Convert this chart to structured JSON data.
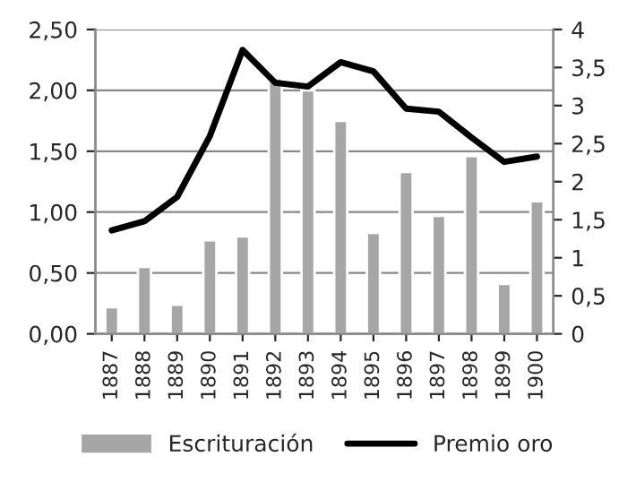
{
  "chart_data": {
    "type": "bar",
    "categories": [
      "1887",
      "1888",
      "1889",
      "1890",
      "1891",
      "1892",
      "1893",
      "1894",
      "1895",
      "1896",
      "1897",
      "1898",
      "1899",
      "1900"
    ],
    "series": [
      {
        "name": "Escrituración",
        "color": "#a6a6a6",
        "values": [
          0.22,
          0.55,
          0.24,
          0.77,
          0.8,
          2.1,
          2.0,
          1.75,
          0.83,
          1.33,
          0.97,
          1.46,
          0.41,
          1.09
        ]
      },
      {
        "name": "Premio oro",
        "type": "line",
        "axis": "y2",
        "color": "#000000",
        "values": [
          1.36,
          1.48,
          1.8,
          2.6,
          3.73,
          3.3,
          3.25,
          3.57,
          3.45,
          2.96,
          2.92,
          2.58,
          2.26,
          2.33
        ]
      }
    ],
    "ylim": [
      0,
      2.5
    ],
    "yticks": [
      {
        "value": 0,
        "label": "0,00"
      },
      {
        "value": 0.5,
        "label": "0,50"
      },
      {
        "value": 1,
        "label": "1,00"
      },
      {
        "value": 1.5,
        "label": "1,50"
      },
      {
        "value": 2,
        "label": "2,00"
      },
      {
        "value": 2.5,
        "label": "2,50"
      }
    ],
    "y2lim": [
      0,
      4
    ],
    "y2ticks": [
      0,
      {
        "value": 0.5,
        "label": "0,5"
      },
      1,
      {
        "value": 1.5,
        "label": "1,5"
      },
      2,
      {
        "value": 2.5,
        "label": "2,5"
      },
      3,
      {
        "value": 3.5,
        "label": "3,5"
      },
      4
    ],
    "grid": "y",
    "legend": "bottom",
    "line_style": "solid",
    "marker": "none"
  }
}
